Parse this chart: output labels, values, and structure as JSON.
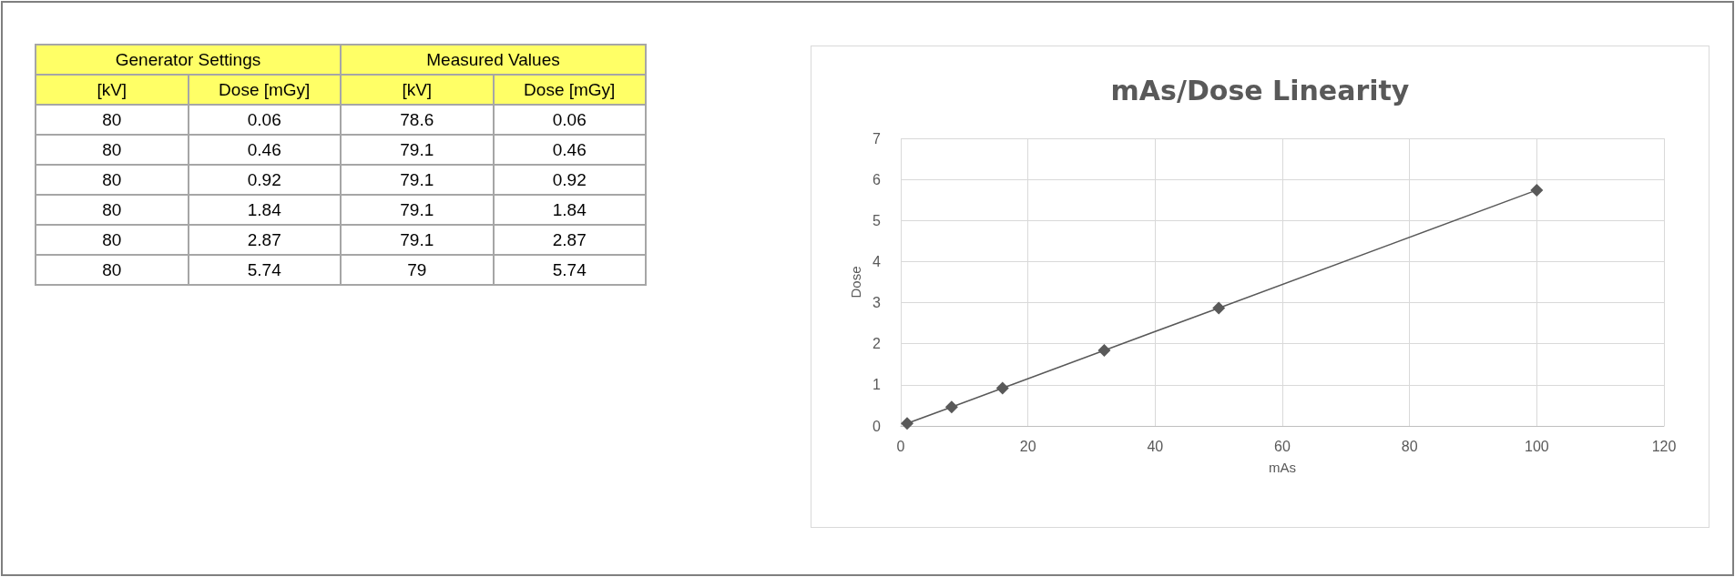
{
  "chart_data": [
    {
      "type": "other",
      "annotations": [
        "Generator Settings",
        "Measured Values",
        "[kV]",
        "Dose [mGy]",
        "[kV]",
        "Dose [mGy]",
        "80",
        "0.06",
        "78.6",
        "0.06",
        "80",
        "0.46",
        "79.1",
        "0.46",
        "80",
        "0.92",
        "79.1",
        "0.92",
        "80",
        "1.84",
        "79.1",
        "1.84",
        "80",
        "2.87",
        "79.1",
        "2.87",
        "80",
        "5.74",
        "79",
        "5.74"
      ]
    },
    {
      "type": "line",
      "title": "mAs/Dose Linearity",
      "xlabel": "mAs",
      "ylabel": "Dose",
      "x": [
        1,
        8,
        16,
        32,
        50,
        100
      ],
      "series": [
        {
          "color": "#595959",
          "values": [
            0.06,
            0.46,
            0.92,
            1.84,
            2.87,
            5.74
          ]
        }
      ],
      "xlim": [
        0,
        120
      ],
      "xticks": [
        0,
        20,
        40,
        60,
        80,
        100,
        120
      ],
      "ylim": [
        0,
        7
      ],
      "yticks": [
        0,
        1,
        2,
        3,
        4,
        5,
        6,
        7
      ],
      "grid": true,
      "marker": "diamond",
      "line_style": "solid"
    }
  ]
}
